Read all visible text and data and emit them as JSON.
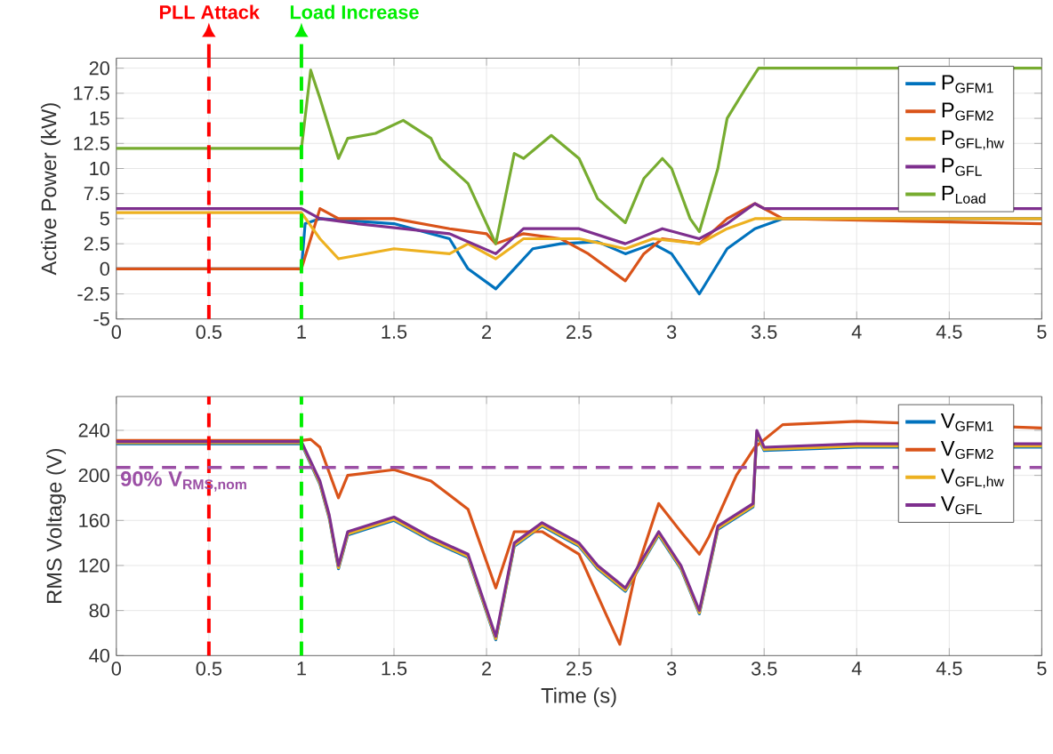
{
  "chart_data": [
    {
      "type": "line",
      "ylabel": "Active Power (kW)",
      "xlim": [
        0,
        5
      ],
      "xticks": [
        0,
        0.5,
        1,
        1.5,
        2,
        2.5,
        3,
        3.5,
        4,
        4.5,
        5
      ],
      "ylim": [
        -5,
        21
      ],
      "yticks": [
        -5,
        -2.5,
        0,
        2.5,
        5,
        7.5,
        10,
        12.5,
        15,
        17.5,
        20
      ],
      "grid": true,
      "legend": "top right",
      "marker": "none",
      "series": [
        {
          "name": "P$_{GFM1}$",
          "color": "#0072bd",
          "x": [
            0,
            1,
            1.02,
            1.1,
            1.5,
            1.8,
            1.9,
            2.05,
            2.15,
            2.25,
            2.4,
            2.6,
            2.75,
            2.9,
            3.0,
            3.15,
            3.3,
            3.45,
            3.6,
            5
          ],
          "values": [
            0,
            0,
            4.5,
            5,
            4.5,
            3,
            0,
            -2,
            0,
            2,
            2.5,
            2.7,
            1.5,
            2.5,
            1.5,
            -2.5,
            2,
            4,
            5,
            5
          ]
        },
        {
          "name": "P$_{GFM2}$",
          "color": "#d95319",
          "x": [
            0,
            1,
            1.05,
            1.1,
            1.2,
            1.5,
            1.8,
            2.0,
            2.05,
            2.2,
            2.4,
            2.55,
            2.75,
            2.85,
            2.95,
            3.15,
            3.3,
            3.45,
            3.6,
            5
          ],
          "values": [
            0,
            0,
            3,
            6,
            5,
            5,
            4,
            3.5,
            2.5,
            3.5,
            3,
            1.5,
            -1.2,
            1.5,
            3,
            2.5,
            5,
            6.5,
            5,
            4.5
          ]
        },
        {
          "name": "P$_{GFL,hw}$",
          "color": "#edb120",
          "x": [
            0,
            1,
            1.1,
            1.2,
            1.5,
            1.8,
            1.9,
            2.05,
            2.2,
            2.5,
            2.75,
            2.9,
            3.15,
            3.3,
            3.45,
            5
          ],
          "values": [
            5.6,
            5.6,
            3,
            1,
            2,
            1.5,
            2.5,
            1,
            3,
            3,
            2,
            3,
            2.5,
            4,
            5,
            5
          ]
        },
        {
          "name": "P$_{GFL}$",
          "color": "#7e2f8e",
          "x": [
            0,
            1,
            1.1,
            1.3,
            1.8,
            2.05,
            2.2,
            2.5,
            2.75,
            2.95,
            3.15,
            3.3,
            3.45,
            3.5,
            5
          ],
          "values": [
            6,
            6,
            5,
            4.5,
            3.5,
            1.5,
            4,
            4,
            2.5,
            4,
            3,
            4.5,
            6.5,
            6,
            6
          ]
        },
        {
          "name": "P$_{Load}$",
          "color": "#77ac30",
          "x": [
            0,
            1,
            1.05,
            1.1,
            1.2,
            1.25,
            1.4,
            1.55,
            1.7,
            1.75,
            1.9,
            2.05,
            2.15,
            2.2,
            2.35,
            2.5,
            2.6,
            2.75,
            2.85,
            2.95,
            3.0,
            3.1,
            3.15,
            3.25,
            3.3,
            3.4,
            3.47,
            5
          ],
          "values": [
            12,
            12,
            19.8,
            17,
            11,
            13,
            13.5,
            14.8,
            13,
            11,
            8.5,
            2.5,
            11.5,
            11,
            13.3,
            11,
            7,
            4.6,
            9,
            11,
            10,
            5,
            3.7,
            10,
            15,
            18,
            20,
            20
          ]
        }
      ],
      "ref_lines": [
        {
          "axis": "x",
          "value": 0.5,
          "label": "PLL Attack",
          "color": "#ff0000",
          "line_style": "dashed"
        },
        {
          "axis": "x",
          "value": 1,
          "label": "Load Increase",
          "color": "#00ee00",
          "line_style": "dashed"
        }
      ]
    },
    {
      "type": "line",
      "xlabel": "Time (s)",
      "ylabel": "RMS Voltage (V)",
      "xlim": [
        0,
        5
      ],
      "xticks": [
        0,
        0.5,
        1,
        1.5,
        2,
        2.5,
        3,
        3.5,
        4,
        4.5,
        5
      ],
      "ylim": [
        40,
        270
      ],
      "yticks": [
        40,
        80,
        120,
        160,
        200,
        240
      ],
      "grid": true,
      "legend": "top right",
      "marker": "none",
      "series": [
        {
          "name": "V$_{GFM1}$",
          "color": "#0072bd",
          "x": [
            0,
            1,
            1.1,
            1.15,
            1.2,
            1.25,
            1.5,
            1.7,
            1.9,
            2.05,
            2.15,
            2.3,
            2.5,
            2.6,
            2.75,
            2.93,
            3.05,
            3.15,
            3.25,
            3.44,
            3.46,
            3.5,
            4,
            5
          ],
          "values": [
            228,
            228,
            192,
            162,
            117,
            147,
            160,
            142,
            127,
            54,
            137,
            155,
            137,
            117,
            97,
            147,
            117,
            77,
            152,
            172,
            236,
            222,
            225,
            225
          ]
        },
        {
          "name": "V$_{GFM2}$",
          "color": "#d95319",
          "x": [
            0,
            1,
            1.05,
            1.1,
            1.2,
            1.25,
            1.5,
            1.7,
            1.9,
            2.05,
            2.15,
            2.3,
            2.5,
            2.65,
            2.72,
            2.8,
            2.93,
            3.05,
            3.15,
            3.2,
            3.35,
            3.45,
            3.6,
            4,
            5
          ],
          "values": [
            231,
            231,
            232,
            225,
            180,
            200,
            205,
            195,
            170,
            100,
            150,
            150,
            130,
            75,
            50,
            110,
            175,
            150,
            130,
            145,
            200,
            225,
            245,
            248,
            242
          ]
        },
        {
          "name": "V$_{GFL,hw}$",
          "color": "#edb120",
          "x": [
            0,
            1,
            1.1,
            1.15,
            1.2,
            1.25,
            1.5,
            1.7,
            1.9,
            2.05,
            2.15,
            2.3,
            2.5,
            2.6,
            2.75,
            2.93,
            3.05,
            3.15,
            3.25,
            3.44,
            3.46,
            3.5,
            4,
            5
          ],
          "values": [
            229,
            229,
            193,
            163,
            118,
            148,
            161,
            143,
            128,
            55,
            138,
            156,
            138,
            118,
            98,
            148,
            118,
            78,
            153,
            173,
            238,
            223,
            226,
            226
          ]
        },
        {
          "name": "V$_{GFL}$",
          "color": "#7e2f8e",
          "x": [
            0,
            1,
            1.1,
            1.15,
            1.2,
            1.25,
            1.5,
            1.7,
            1.9,
            2.05,
            2.15,
            2.3,
            2.5,
            2.6,
            2.75,
            2.93,
            3.05,
            3.15,
            3.25,
            3.44,
            3.46,
            3.5,
            4,
            5
          ],
          "values": [
            230,
            230,
            195,
            165,
            120,
            150,
            163,
            145,
            130,
            57,
            140,
            158,
            140,
            120,
            100,
            150,
            120,
            80,
            155,
            175,
            240,
            225,
            228,
            228
          ]
        }
      ],
      "ref_lines": [
        {
          "axis": "x",
          "value": 0.5,
          "color": "#ff0000",
          "line_style": "dashed"
        },
        {
          "axis": "x",
          "value": 1,
          "color": "#00ee00",
          "line_style": "dashed"
        },
        {
          "axis": "y",
          "value": 207,
          "label": "90% V$_{RMS,nom}$",
          "color": "#9b4fa5",
          "line_style": "dashed"
        }
      ]
    }
  ]
}
